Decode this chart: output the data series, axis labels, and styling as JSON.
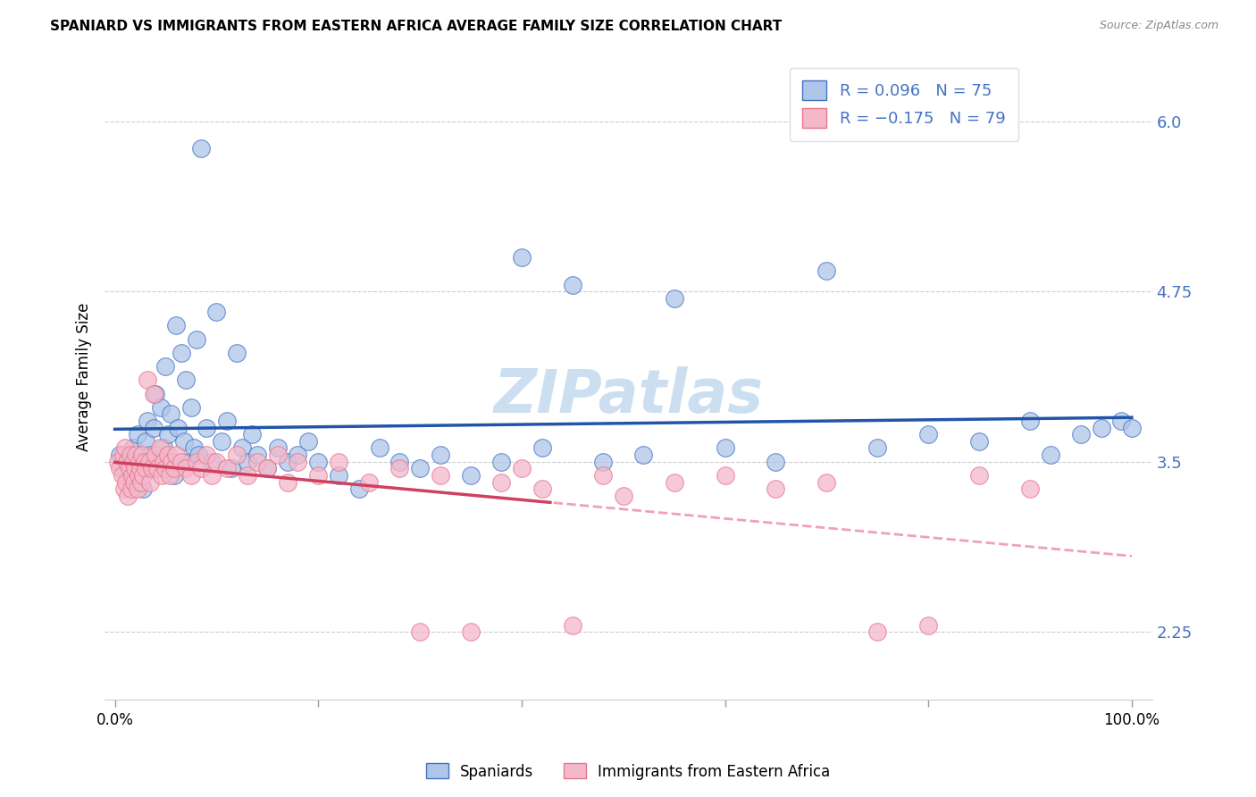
{
  "title": "SPANIARD VS IMMIGRANTS FROM EASTERN AFRICA AVERAGE FAMILY SIZE CORRELATION CHART",
  "source": "Source: ZipAtlas.com",
  "ylabel": "Average Family Size",
  "yticks": [
    2.25,
    3.5,
    4.75,
    6.0
  ],
  "ylim": [
    1.75,
    6.5
  ],
  "xlim": [
    -0.01,
    1.02
  ],
  "spaniards_color": "#aec6e8",
  "immigrants_color": "#f4b8cb",
  "spaniards_edge_color": "#4472c4",
  "immigrants_edge_color": "#e8758a",
  "spaniards_line_color": "#2255aa",
  "immigrants_solid_color": "#d04060",
  "immigrants_dash_color": "#f0a0b8",
  "watermark_color": "#ccdff0",
  "R_spaniards": 0.096,
  "N_spaniards": 75,
  "R_immigrants": -0.175,
  "N_immigrants": 79,
  "spaniards_x": [
    0.005,
    0.008,
    0.012,
    0.015,
    0.018,
    0.02,
    0.022,
    0.025,
    0.028,
    0.03,
    0.032,
    0.035,
    0.038,
    0.04,
    0.042,
    0.045,
    0.048,
    0.05,
    0.052,
    0.055,
    0.058,
    0.06,
    0.062,
    0.065,
    0.068,
    0.07,
    0.072,
    0.075,
    0.078,
    0.08,
    0.082,
    0.085,
    0.09,
    0.095,
    0.1,
    0.105,
    0.11,
    0.115,
    0.12,
    0.125,
    0.13,
    0.135,
    0.14,
    0.15,
    0.16,
    0.17,
    0.18,
    0.19,
    0.2,
    0.22,
    0.24,
    0.26,
    0.28,
    0.3,
    0.32,
    0.35,
    0.38,
    0.4,
    0.42,
    0.45,
    0.48,
    0.52,
    0.55,
    0.6,
    0.65,
    0.7,
    0.75,
    0.8,
    0.85,
    0.9,
    0.92,
    0.95,
    0.97,
    0.99,
    1.0
  ],
  "spaniards_y": [
    3.55,
    3.45,
    3.5,
    3.4,
    3.6,
    3.35,
    3.7,
    3.5,
    3.3,
    3.65,
    3.8,
    3.55,
    3.75,
    4.0,
    3.45,
    3.9,
    3.6,
    4.2,
    3.7,
    3.85,
    3.4,
    4.5,
    3.75,
    4.3,
    3.65,
    4.1,
    3.5,
    3.9,
    3.6,
    4.4,
    3.55,
    5.8,
    3.75,
    3.5,
    4.6,
    3.65,
    3.8,
    3.45,
    4.3,
    3.6,
    3.5,
    3.7,
    3.55,
    3.45,
    3.6,
    3.5,
    3.55,
    3.65,
    3.5,
    3.4,
    3.3,
    3.6,
    3.5,
    3.45,
    3.55,
    3.4,
    3.5,
    5.0,
    3.6,
    4.8,
    3.5,
    3.55,
    4.7,
    3.6,
    3.5,
    4.9,
    3.6,
    3.7,
    3.65,
    3.8,
    3.55,
    3.7,
    3.75,
    3.8,
    3.75
  ],
  "immigrants_x": [
    0.003,
    0.005,
    0.007,
    0.008,
    0.009,
    0.01,
    0.011,
    0.012,
    0.013,
    0.014,
    0.015,
    0.016,
    0.017,
    0.018,
    0.019,
    0.02,
    0.021,
    0.022,
    0.023,
    0.024,
    0.025,
    0.026,
    0.027,
    0.028,
    0.029,
    0.03,
    0.032,
    0.034,
    0.035,
    0.036,
    0.038,
    0.04,
    0.042,
    0.044,
    0.046,
    0.048,
    0.05,
    0.052,
    0.054,
    0.056,
    0.058,
    0.06,
    0.065,
    0.07,
    0.075,
    0.08,
    0.085,
    0.09,
    0.095,
    0.1,
    0.11,
    0.12,
    0.13,
    0.14,
    0.15,
    0.16,
    0.17,
    0.18,
    0.2,
    0.22,
    0.25,
    0.28,
    0.3,
    0.32,
    0.35,
    0.38,
    0.4,
    0.42,
    0.45,
    0.48,
    0.5,
    0.55,
    0.6,
    0.65,
    0.7,
    0.75,
    0.8,
    0.85,
    0.9
  ],
  "immigrants_y": [
    3.5,
    3.45,
    3.4,
    3.55,
    3.3,
    3.6,
    3.35,
    3.5,
    3.25,
    3.45,
    3.55,
    3.3,
    3.4,
    3.5,
    3.35,
    3.45,
    3.55,
    3.3,
    3.4,
    3.5,
    3.45,
    3.35,
    3.55,
    3.4,
    3.5,
    3.45,
    4.1,
    3.5,
    3.35,
    3.45,
    4.0,
    3.55,
    3.45,
    3.6,
    3.4,
    3.5,
    3.45,
    3.55,
    3.4,
    3.5,
    3.45,
    3.55,
    3.5,
    3.45,
    3.4,
    3.5,
    3.45,
    3.55,
    3.4,
    3.5,
    3.45,
    3.55,
    3.4,
    3.5,
    3.45,
    3.55,
    3.35,
    3.5,
    3.4,
    3.5,
    3.35,
    3.45,
    2.25,
    3.4,
    2.25,
    3.35,
    3.45,
    3.3,
    2.3,
    3.4,
    3.25,
    3.35,
    3.4,
    3.3,
    3.35,
    2.25,
    2.3,
    3.4,
    3.3
  ]
}
